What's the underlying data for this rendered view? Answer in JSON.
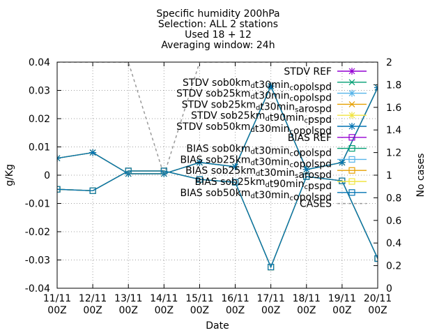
{
  "chart_data": {
    "type": "line",
    "title_lines": [
      "Specific humidity 200hPa",
      "Selection: ALL       2 stations",
      "Used 18 + 12",
      "Averaging window: 24h"
    ],
    "xlabel": "Date",
    "ylabel": "g/Kg",
    "y2label": "No cases",
    "categories": [
      [
        "11/11",
        "00Z"
      ],
      [
        "12/11",
        "00Z"
      ],
      [
        "13/11",
        "00Z"
      ],
      [
        "14/11",
        "00Z"
      ],
      [
        "15/11",
        "00Z"
      ],
      [
        "16/11",
        "00Z"
      ],
      [
        "17/11",
        "00Z"
      ],
      [
        "18/11",
        "00Z"
      ],
      [
        "19/11",
        "00Z"
      ],
      [
        "20/11",
        "00Z"
      ]
    ],
    "ylim": [
      -0.04,
      0.04
    ],
    "yticks": [
      -0.04,
      -0.03,
      -0.02,
      -0.01,
      0,
      0.01,
      0.02,
      0.03,
      0.04
    ],
    "ytick_labels": [
      "-0.04",
      "-0.03",
      "-0.02",
      "-0.01",
      "0",
      "0.01",
      "0.02",
      "0.03",
      "0.04"
    ],
    "y2lim": [
      0,
      2
    ],
    "y2ticks": [
      0,
      0.2,
      0.4,
      0.6,
      0.8,
      1,
      1.2,
      1.4,
      1.6,
      1.8,
      2
    ],
    "y2tick_labels": [
      "0",
      "0.2",
      "0.4",
      "0.6",
      "0.8",
      "1",
      "1.2",
      "1.4",
      "1.6",
      "1.8",
      "2"
    ],
    "grid": true,
    "legend_position": "top-right",
    "series": [
      {
        "name": "STDV REF",
        "color": "#9400d3",
        "marker": "star",
        "values": [
          0.006,
          0.008,
          0.0005,
          0.0005,
          0.0045,
          0.003,
          0.0315,
          0.002,
          0.0045,
          0.031
        ]
      },
      {
        "name": "STDV sob0km_dt30min_copolspd",
        "color": "#009e73",
        "marker": "cross",
        "values": [
          0.006,
          0.008,
          0.0005,
          0.0005,
          0.0045,
          0.003,
          0.0315,
          0.002,
          0.0045,
          0.031
        ]
      },
      {
        "name": "STDV sob25km_dt30min_copolspd",
        "color": "#56b4e9",
        "marker": "star",
        "values": [
          0.006,
          0.008,
          0.0005,
          0.0005,
          0.0045,
          0.003,
          0.0315,
          0.002,
          0.0045,
          0.031
        ]
      },
      {
        "name": "STDV sob25km_dt30min_sarospd",
        "color": "#e69f00",
        "marker": "cross",
        "values": [
          0.006,
          0.008,
          0.0005,
          0.0005,
          0.0045,
          0.003,
          0.0315,
          0.002,
          0.0045,
          0.031
        ]
      },
      {
        "name": "STDV sob25km_dt90min_cpspd",
        "color": "#f0e442",
        "marker": "star",
        "values": [
          0.006,
          0.008,
          0.0005,
          0.0005,
          0.0045,
          0.003,
          0.0315,
          0.002,
          0.0045,
          0.031
        ]
      },
      {
        "name": "STDV sob50km_dt30min_copolspd",
        "color": "#0072b2",
        "marker": "star",
        "values": [
          0.006,
          0.008,
          0.0005,
          0.0005,
          0.0045,
          0.003,
          0.0315,
          0.002,
          0.0045,
          0.031
        ]
      },
      {
        "name": "BIAS REF",
        "color": "#9400d3",
        "marker": "square",
        "values": [
          -0.005,
          -0.0055,
          0.0015,
          0.0015,
          -0.0015,
          -0.0025,
          -0.0325,
          -0.0005,
          -0.002,
          -0.0295
        ]
      },
      {
        "name": "BIAS sob0km_dt30min_copolspd",
        "color": "#009e73",
        "marker": "square",
        "values": [
          -0.005,
          -0.0055,
          0.0015,
          0.0015,
          -0.0015,
          -0.0025,
          -0.0325,
          -0.0005,
          -0.002,
          -0.0295
        ]
      },
      {
        "name": "BIAS sob25km_dt30min_copolspd",
        "color": "#56b4e9",
        "marker": "square",
        "values": [
          -0.005,
          -0.0055,
          0.0015,
          0.0015,
          -0.0015,
          -0.0025,
          -0.0325,
          -0.0005,
          -0.002,
          -0.0295
        ]
      },
      {
        "name": "BIAS sob25km_dt30min_sarospd",
        "color": "#e69f00",
        "marker": "square",
        "values": [
          -0.005,
          -0.0055,
          0.0015,
          0.0015,
          -0.0015,
          -0.0025,
          -0.0325,
          -0.0005,
          -0.002,
          -0.0295
        ]
      },
      {
        "name": "BIAS sob25km_dt90min_cpspd",
        "color": "#f0e442",
        "marker": "square",
        "values": [
          -0.005,
          -0.0055,
          0.0015,
          0.0015,
          -0.0015,
          -0.0025,
          -0.0325,
          -0.0005,
          -0.002,
          -0.0295
        ]
      },
      {
        "name": "BIAS sob50km_dt30min_copolspd",
        "color": "#0072b2",
        "marker": "square",
        "values": [
          -0.005,
          -0.0055,
          0.0015,
          0.0015,
          -0.0015,
          -0.0025,
          -0.0325,
          -0.0005,
          -0.002,
          -0.0295
        ]
      },
      {
        "name": "CASES",
        "color": "#999999",
        "marker": "none",
        "dashed": true,
        "axis": "y2",
        "values": [
          2,
          2,
          2,
          1,
          2,
          2,
          2,
          2,
          2,
          2
        ]
      }
    ],
    "legend_rows": [
      [
        {
          "t": "STDV REF",
          "sub": false
        }
      ],
      [
        {
          "t": "STDV sob0km",
          "sub": false
        },
        {
          "t": "d",
          "sub": true
        },
        {
          "t": "t30min",
          "sub": false
        },
        {
          "t": "c",
          "sub": true
        },
        {
          "t": "opolspd",
          "sub": false
        }
      ],
      [
        {
          "t": "STDV sob25km",
          "sub": false
        },
        {
          "t": "d",
          "sub": true
        },
        {
          "t": "t30min",
          "sub": false
        },
        {
          "t": "c",
          "sub": true
        },
        {
          "t": "opolspd",
          "sub": false
        }
      ],
      [
        {
          "t": "STDV sob25km",
          "sub": false
        },
        {
          "t": "d",
          "sub": true
        },
        {
          "t": "t30min",
          "sub": false
        },
        {
          "t": "s",
          "sub": true
        },
        {
          "t": "arospd",
          "sub": false
        }
      ],
      [
        {
          "t": "STDV sob25km",
          "sub": false
        },
        {
          "t": "d",
          "sub": true
        },
        {
          "t": "t90min",
          "sub": false
        },
        {
          "t": "c",
          "sub": true
        },
        {
          "t": "pspd",
          "sub": false
        }
      ],
      [
        {
          "t": "STDV sob50km",
          "sub": false
        },
        {
          "t": "d",
          "sub": true
        },
        {
          "t": "t30min",
          "sub": false
        },
        {
          "t": "c",
          "sub": true
        },
        {
          "t": "opolspd",
          "sub": false
        }
      ],
      [
        {
          "t": "BIAS REF",
          "sub": false
        }
      ],
      [
        {
          "t": "BIAS sob0km",
          "sub": false
        },
        {
          "t": "d",
          "sub": true
        },
        {
          "t": "t30min",
          "sub": false
        },
        {
          "t": "c",
          "sub": true
        },
        {
          "t": "opolspd",
          "sub": false
        }
      ],
      [
        {
          "t": "BIAS sob25km",
          "sub": false
        },
        {
          "t": "d",
          "sub": true
        },
        {
          "t": "t30min",
          "sub": false
        },
        {
          "t": "c",
          "sub": true
        },
        {
          "t": "opolspd",
          "sub": false
        }
      ],
      [
        {
          "t": "BIAS sob25km",
          "sub": false
        },
        {
          "t": "d",
          "sub": true
        },
        {
          "t": "t30min",
          "sub": false
        },
        {
          "t": "s",
          "sub": true
        },
        {
          "t": "arospd",
          "sub": false
        }
      ],
      [
        {
          "t": "BIAS sob25km",
          "sub": false
        },
        {
          "t": "d",
          "sub": true
        },
        {
          "t": "t90min",
          "sub": false
        },
        {
          "t": "c",
          "sub": true
        },
        {
          "t": "pspd",
          "sub": false
        }
      ],
      [
        {
          "t": "BIAS sob50km",
          "sub": false
        },
        {
          "t": "d",
          "sub": true
        },
        {
          "t": "t30min",
          "sub": false
        },
        {
          "t": "c",
          "sub": true
        },
        {
          "t": "opolspd",
          "sub": false
        }
      ],
      [
        {
          "t": "CASES",
          "sub": false
        }
      ]
    ]
  }
}
